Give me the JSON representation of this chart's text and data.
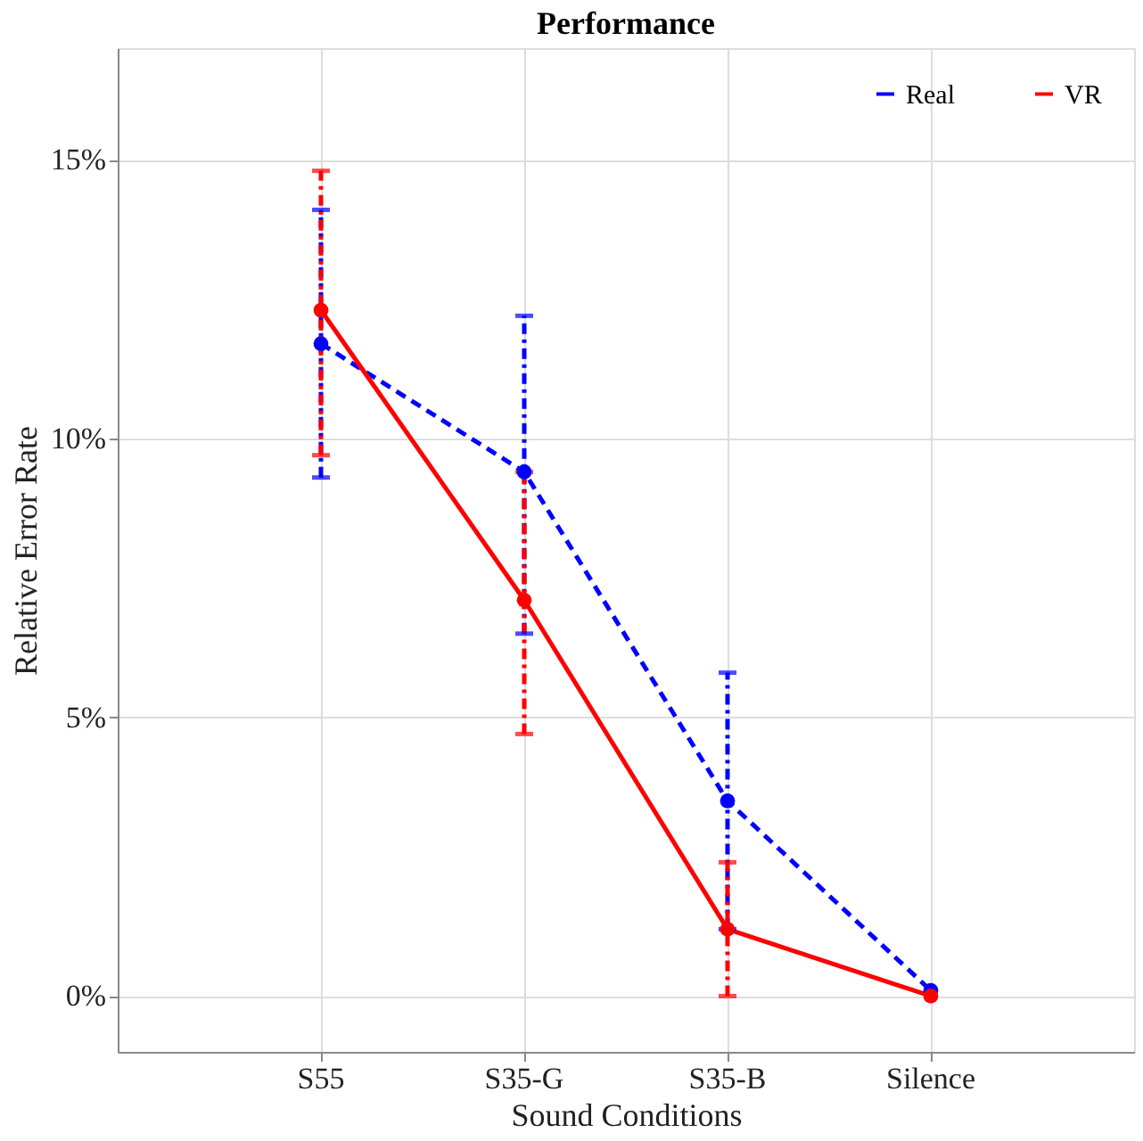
{
  "chart_data": {
    "type": "line",
    "title": "Performance",
    "xlabel": "Sound Conditions",
    "ylabel": "Relative Error Rate",
    "categories": [
      "S55",
      "S35-G",
      "S35-B",
      "Silence"
    ],
    "series": [
      {
        "name": "Real",
        "color": "#0000ff",
        "line_style": "dashed",
        "values": [
          11.7,
          9.4,
          3.5,
          0.1
        ],
        "errors": [
          [
            9.3,
            14.1
          ],
          [
            6.5,
            12.2
          ],
          [
            1.2,
            5.8
          ],
          null
        ]
      },
      {
        "name": "VR",
        "color": "#ff0000",
        "line_style": "solid",
        "values": [
          12.3,
          7.1,
          1.2,
          0
        ],
        "errors": [
          [
            9.7,
            14.8
          ],
          [
            4.7,
            9.4
          ],
          [
            0,
            2.4
          ],
          null
        ]
      }
    ],
    "ylim": [
      -1,
      17
    ],
    "yticks": [
      {
        "value": 0,
        "label": "0%"
      },
      {
        "value": 5,
        "label": "5%"
      },
      {
        "value": 10,
        "label": "10%"
      },
      {
        "value": 15,
        "label": "15%"
      }
    ],
    "grid": true,
    "legend": "top right",
    "marker": "circle"
  }
}
